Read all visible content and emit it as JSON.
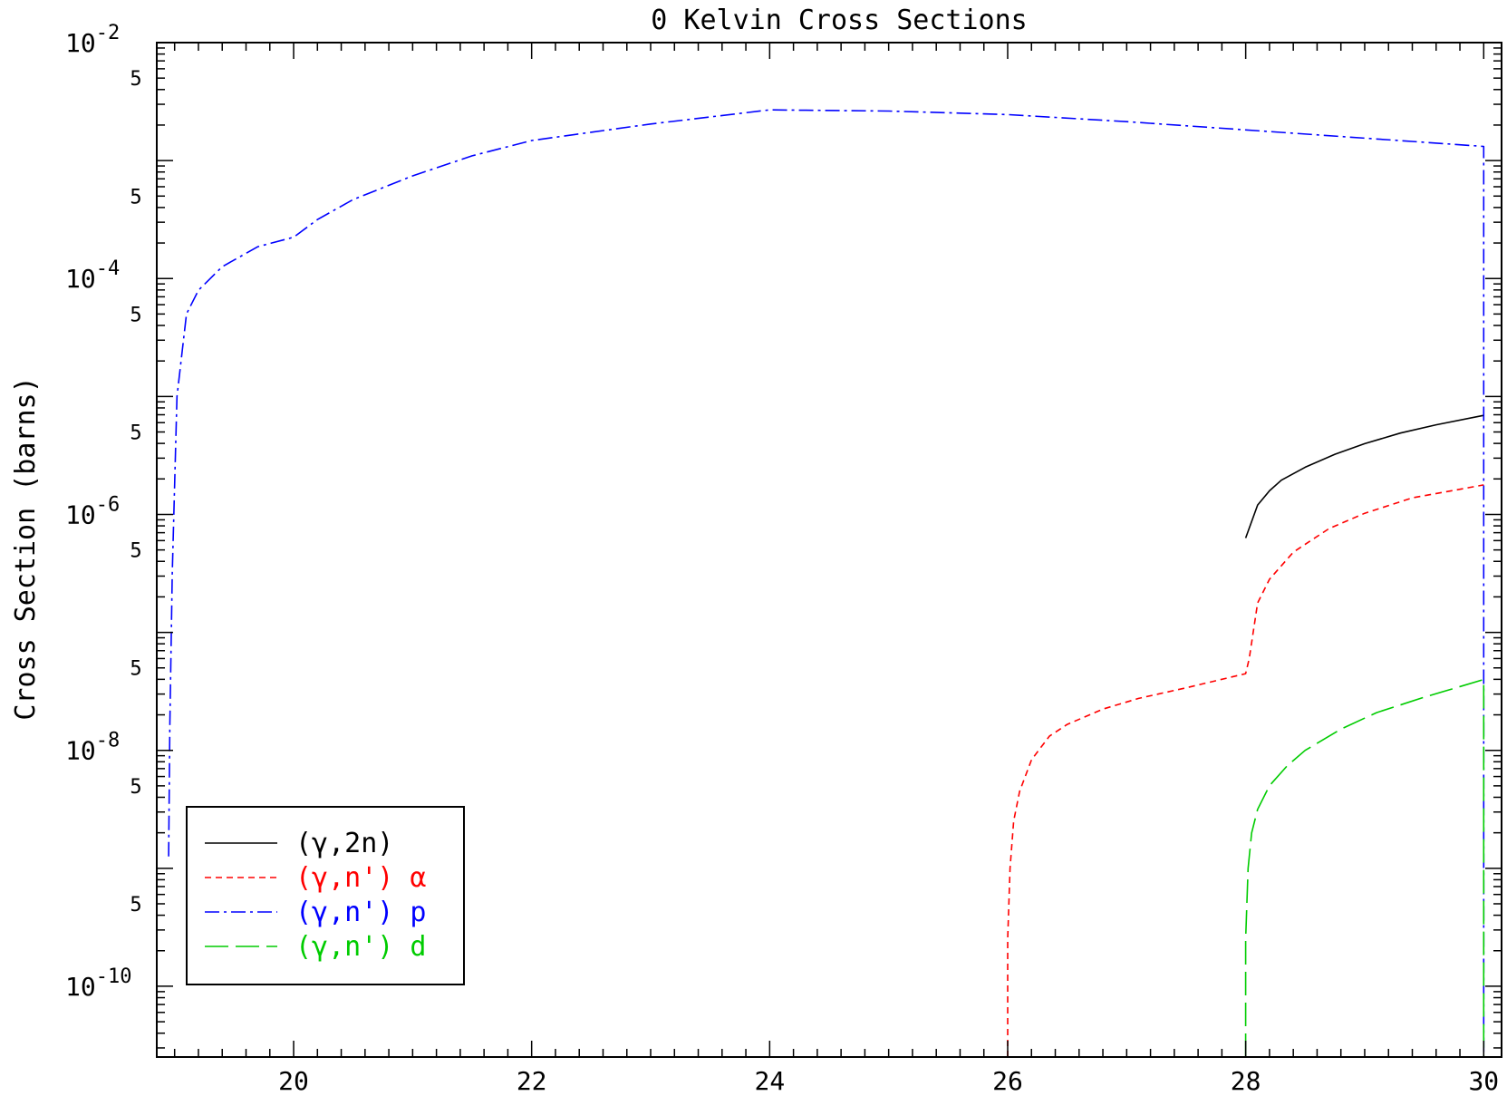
{
  "chart_data": {
    "type": "line",
    "title": "0 Kelvin Cross Sections",
    "ylabel": "Cross Section (barns)",
    "xlabel": "",
    "xlim": [
      18.85,
      30.15
    ],
    "ylim": [
      -10.6,
      -2
    ],
    "y_scale": "log",
    "x_ticks": [
      {
        "v": 20,
        "label": "20"
      },
      {
        "v": 22,
        "label": "22"
      },
      {
        "v": 24,
        "label": "24"
      },
      {
        "v": 26,
        "label": "26"
      },
      {
        "v": 28,
        "label": "28"
      },
      {
        "v": 30,
        "label": "30"
      }
    ],
    "y_major_ticks": [
      {
        "exp": -2,
        "base": "10",
        "sup": "-2"
      },
      {
        "exp": -4,
        "base": "10",
        "sup": "-4"
      },
      {
        "exp": -6,
        "base": "10",
        "sup": "-6"
      },
      {
        "exp": -8,
        "base": "10",
        "sup": "-8"
      },
      {
        "exp": -10,
        "base": "10",
        "sup": "-10"
      }
    ],
    "y_minor_label": "5",
    "y_minor_label_exps": [
      -2.301,
      -3.301,
      -4.301,
      -5.301,
      -6.301,
      -7.301,
      -8.301,
      -9.301
    ],
    "legend_position": "bottom-left",
    "series": [
      {
        "name": "(γ,2n)",
        "color": "#000000",
        "dash": "solid",
        "x": [
          28.0,
          28.1,
          28.2,
          28.3,
          28.5,
          28.75,
          29.0,
          29.3,
          29.6,
          30.0
        ],
        "y": [
          -6.2,
          -5.92,
          -5.8,
          -5.71,
          -5.6,
          -5.49,
          -5.4,
          -5.31,
          -5.24,
          -5.16
        ]
      },
      {
        "name": "(γ,n') α",
        "color": "#ff0000",
        "dash": "dash",
        "x": [
          26.0,
          26.0,
          26.02,
          26.05,
          26.1,
          26.2,
          26.35,
          26.5,
          26.8,
          27.1,
          27.5,
          28.0,
          28.03,
          28.1,
          28.2,
          28.4,
          28.7,
          29.0,
          29.4,
          30.0
        ],
        "y": [
          -10.6,
          -9.6,
          -9.0,
          -8.6,
          -8.35,
          -8.08,
          -7.88,
          -7.78,
          -7.65,
          -7.56,
          -7.47,
          -7.35,
          -7.22,
          -6.75,
          -6.55,
          -6.32,
          -6.12,
          -5.99,
          -5.86,
          -5.75
        ]
      },
      {
        "name": "(γ,n') p",
        "color": "#0000ff",
        "dash": "dashdot",
        "x": [
          18.95,
          18.96,
          18.98,
          19.02,
          19.1,
          19.2,
          19.4,
          19.7,
          20.0,
          20.2,
          20.5,
          21.0,
          21.5,
          22.0,
          23.0,
          24.0,
          25.0,
          26.0,
          27.0,
          28.0,
          29.0,
          30.0,
          30.0
        ],
        "y": [
          -8.9,
          -7.8,
          -6.5,
          -5.0,
          -4.3,
          -4.1,
          -3.9,
          -3.73,
          -3.65,
          -3.5,
          -3.33,
          -3.13,
          -2.96,
          -2.83,
          -2.69,
          -2.57,
          -2.58,
          -2.61,
          -2.67,
          -2.74,
          -2.81,
          -2.88,
          -10.6
        ]
      },
      {
        "name": "(γ,n') d",
        "color": "#00cc00",
        "dash": "longdash",
        "x": [
          28.0,
          28.0,
          28.02,
          28.05,
          28.1,
          28.2,
          28.35,
          28.5,
          28.8,
          29.1,
          29.5,
          30.0,
          30.0
        ],
        "y": [
          -10.6,
          -9.6,
          -9.0,
          -8.7,
          -8.5,
          -8.3,
          -8.13,
          -8.0,
          -7.82,
          -7.68,
          -7.55,
          -7.4,
          -10.6
        ]
      }
    ]
  }
}
